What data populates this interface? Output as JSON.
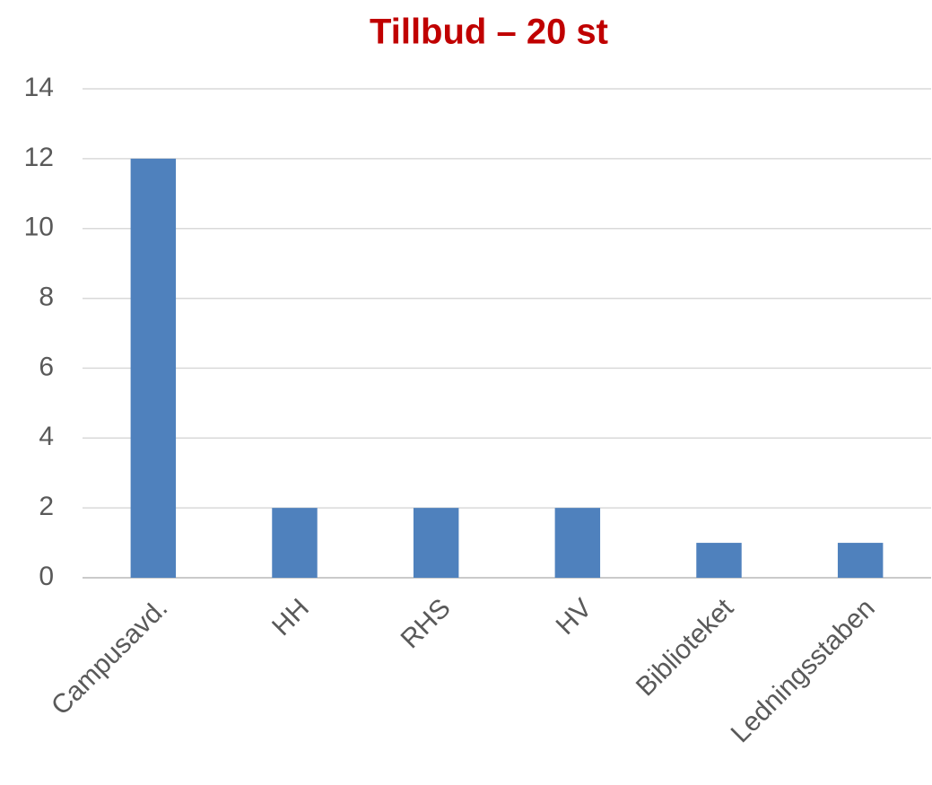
{
  "chart_data": {
    "type": "bar",
    "title": "Tillbud – 20 st",
    "categories": [
      "Campusavd.",
      "HH",
      "RHS",
      "HV",
      "Biblioteket",
      "Ledningsstaben"
    ],
    "values": [
      12,
      2,
      2,
      2,
      1,
      1
    ],
    "color": "#4f81bd",
    "ylim": [
      0,
      14
    ],
    "yticks": [
      0,
      2,
      4,
      6,
      8,
      10,
      12,
      14
    ],
    "grid": true
  }
}
